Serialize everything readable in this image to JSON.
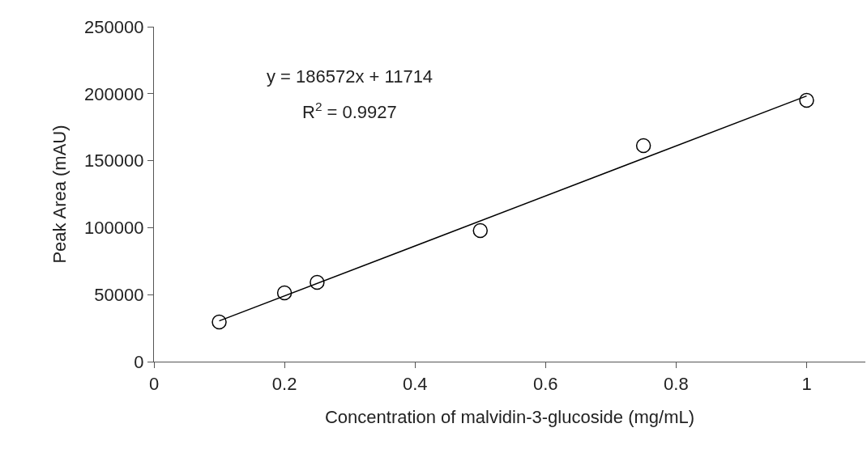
{
  "chart_data": {
    "type": "scatter",
    "xlabel": "Concentration of malvidin-3-glucoside (mg/mL)",
    "ylabel": "Peak Area (mAU)",
    "annotations": [
      "y = 186572x + 11714",
      "R$^{2}$ = 0.9927"
    ],
    "xlim": [
      0,
      1.09
    ],
    "xticks": [
      0,
      0.2,
      0.4,
      0.6,
      0.8,
      1
    ],
    "ylim": [
      0,
      250000
    ],
    "yticks": [
      0,
      50000,
      100000,
      150000,
      200000,
      250000
    ],
    "grid": false,
    "series": [
      {
        "marker": "circle",
        "color": "#000000",
        "x": [
          0.1,
          0.2,
          0.25,
          0.5,
          0.75,
          1
        ],
        "values": [
          29600,
          51300,
          59200,
          97800,
          161200,
          195000
        ]
      },
      {
        "type": "line",
        "marker": "none",
        "color": "#000000",
        "line_style": "solid",
        "x": [
          0.1,
          1
        ],
        "values": [
          30400,
          198300
        ]
      }
    ]
  }
}
